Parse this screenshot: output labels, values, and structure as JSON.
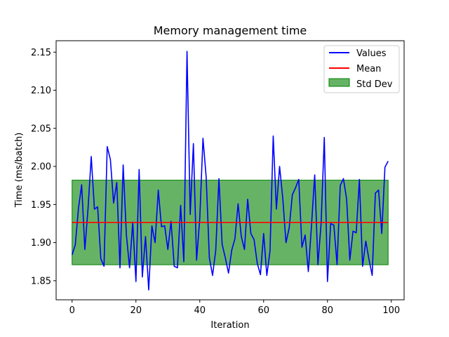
{
  "chart_data": {
    "type": "line",
    "title": "Memory management time",
    "xlabel": "Iteration",
    "ylabel": "Time (ms/batch)",
    "xlim": [
      -5,
      104
    ],
    "ylim": [
      1.825,
      2.165
    ],
    "xticks": [
      0,
      20,
      40,
      60,
      80,
      100
    ],
    "yticks": [
      1.85,
      1.9,
      1.95,
      2.0,
      2.05,
      2.1,
      2.15
    ],
    "xtick_labels": [
      "0",
      "20",
      "40",
      "60",
      "80",
      "100"
    ],
    "ytick_labels": [
      "1.85",
      "1.90",
      "1.95",
      "2.00",
      "2.05",
      "2.10",
      "2.15"
    ],
    "grid": false,
    "legend_position": "upper right",
    "legend": [
      "Values",
      "Mean",
      "Std Dev"
    ],
    "colors": {
      "values": "#0000ff",
      "mean": "#ff0000",
      "std_fill": "#008000",
      "std_edge": "#008000"
    },
    "series": [
      {
        "name": "Values",
        "x": [
          0,
          1,
          2,
          3,
          4,
          5,
          6,
          7,
          8,
          9,
          10,
          11,
          12,
          13,
          14,
          15,
          16,
          17,
          18,
          19,
          20,
          21,
          22,
          23,
          24,
          25,
          26,
          27,
          28,
          29,
          30,
          31,
          32,
          33,
          34,
          35,
          36,
          37,
          38,
          39,
          40,
          41,
          42,
          43,
          44,
          45,
          46,
          47,
          48,
          49,
          50,
          51,
          52,
          53,
          54,
          55,
          56,
          57,
          58,
          59,
          60,
          61,
          62,
          63,
          64,
          65,
          66,
          67,
          68,
          69,
          70,
          71,
          72,
          73,
          74,
          75,
          76,
          77,
          78,
          79,
          80,
          81,
          82,
          83,
          84,
          85,
          86,
          87,
          88,
          89,
          90,
          91,
          92,
          93,
          94,
          95,
          96,
          97,
          98,
          99
        ],
        "y": [
          1.884,
          1.897,
          1.945,
          1.976,
          1.891,
          1.945,
          2.013,
          1.944,
          1.947,
          1.879,
          1.869,
          2.026,
          2.009,
          1.952,
          1.979,
          1.867,
          2.002,
          1.911,
          1.867,
          1.927,
          1.849,
          1.996,
          1.855,
          1.908,
          1.838,
          1.922,
          1.9,
          1.969,
          1.921,
          1.922,
          1.891,
          1.928,
          1.869,
          1.867,
          1.949,
          1.875,
          2.151,
          1.937,
          2.03,
          1.877,
          1.932,
          2.037,
          1.986,
          1.88,
          1.857,
          1.89,
          1.984,
          1.898,
          1.88,
          1.86,
          1.89,
          1.905,
          1.951,
          1.908,
          1.891,
          1.957,
          1.912,
          1.904,
          1.873,
          1.858,
          1.912,
          1.857,
          1.889,
          2.04,
          1.944,
          2.0,
          1.958,
          1.9,
          1.919,
          1.963,
          1.972,
          1.983,
          1.894,
          1.91,
          1.862,
          1.923,
          1.989,
          1.871,
          1.925,
          2.038,
          1.849,
          1.925,
          1.923,
          1.871,
          1.975,
          1.984,
          1.957,
          1.877,
          1.915,
          1.913,
          1.983,
          1.869,
          1.902,
          1.878,
          1.857,
          1.965,
          1.969,
          1.912,
          1.999,
          2.007
        ]
      }
    ],
    "mean": 1.9265,
    "std_lower": 1.871,
    "std_upper": 1.982,
    "mean_x_range": [
      0,
      99
    ]
  }
}
